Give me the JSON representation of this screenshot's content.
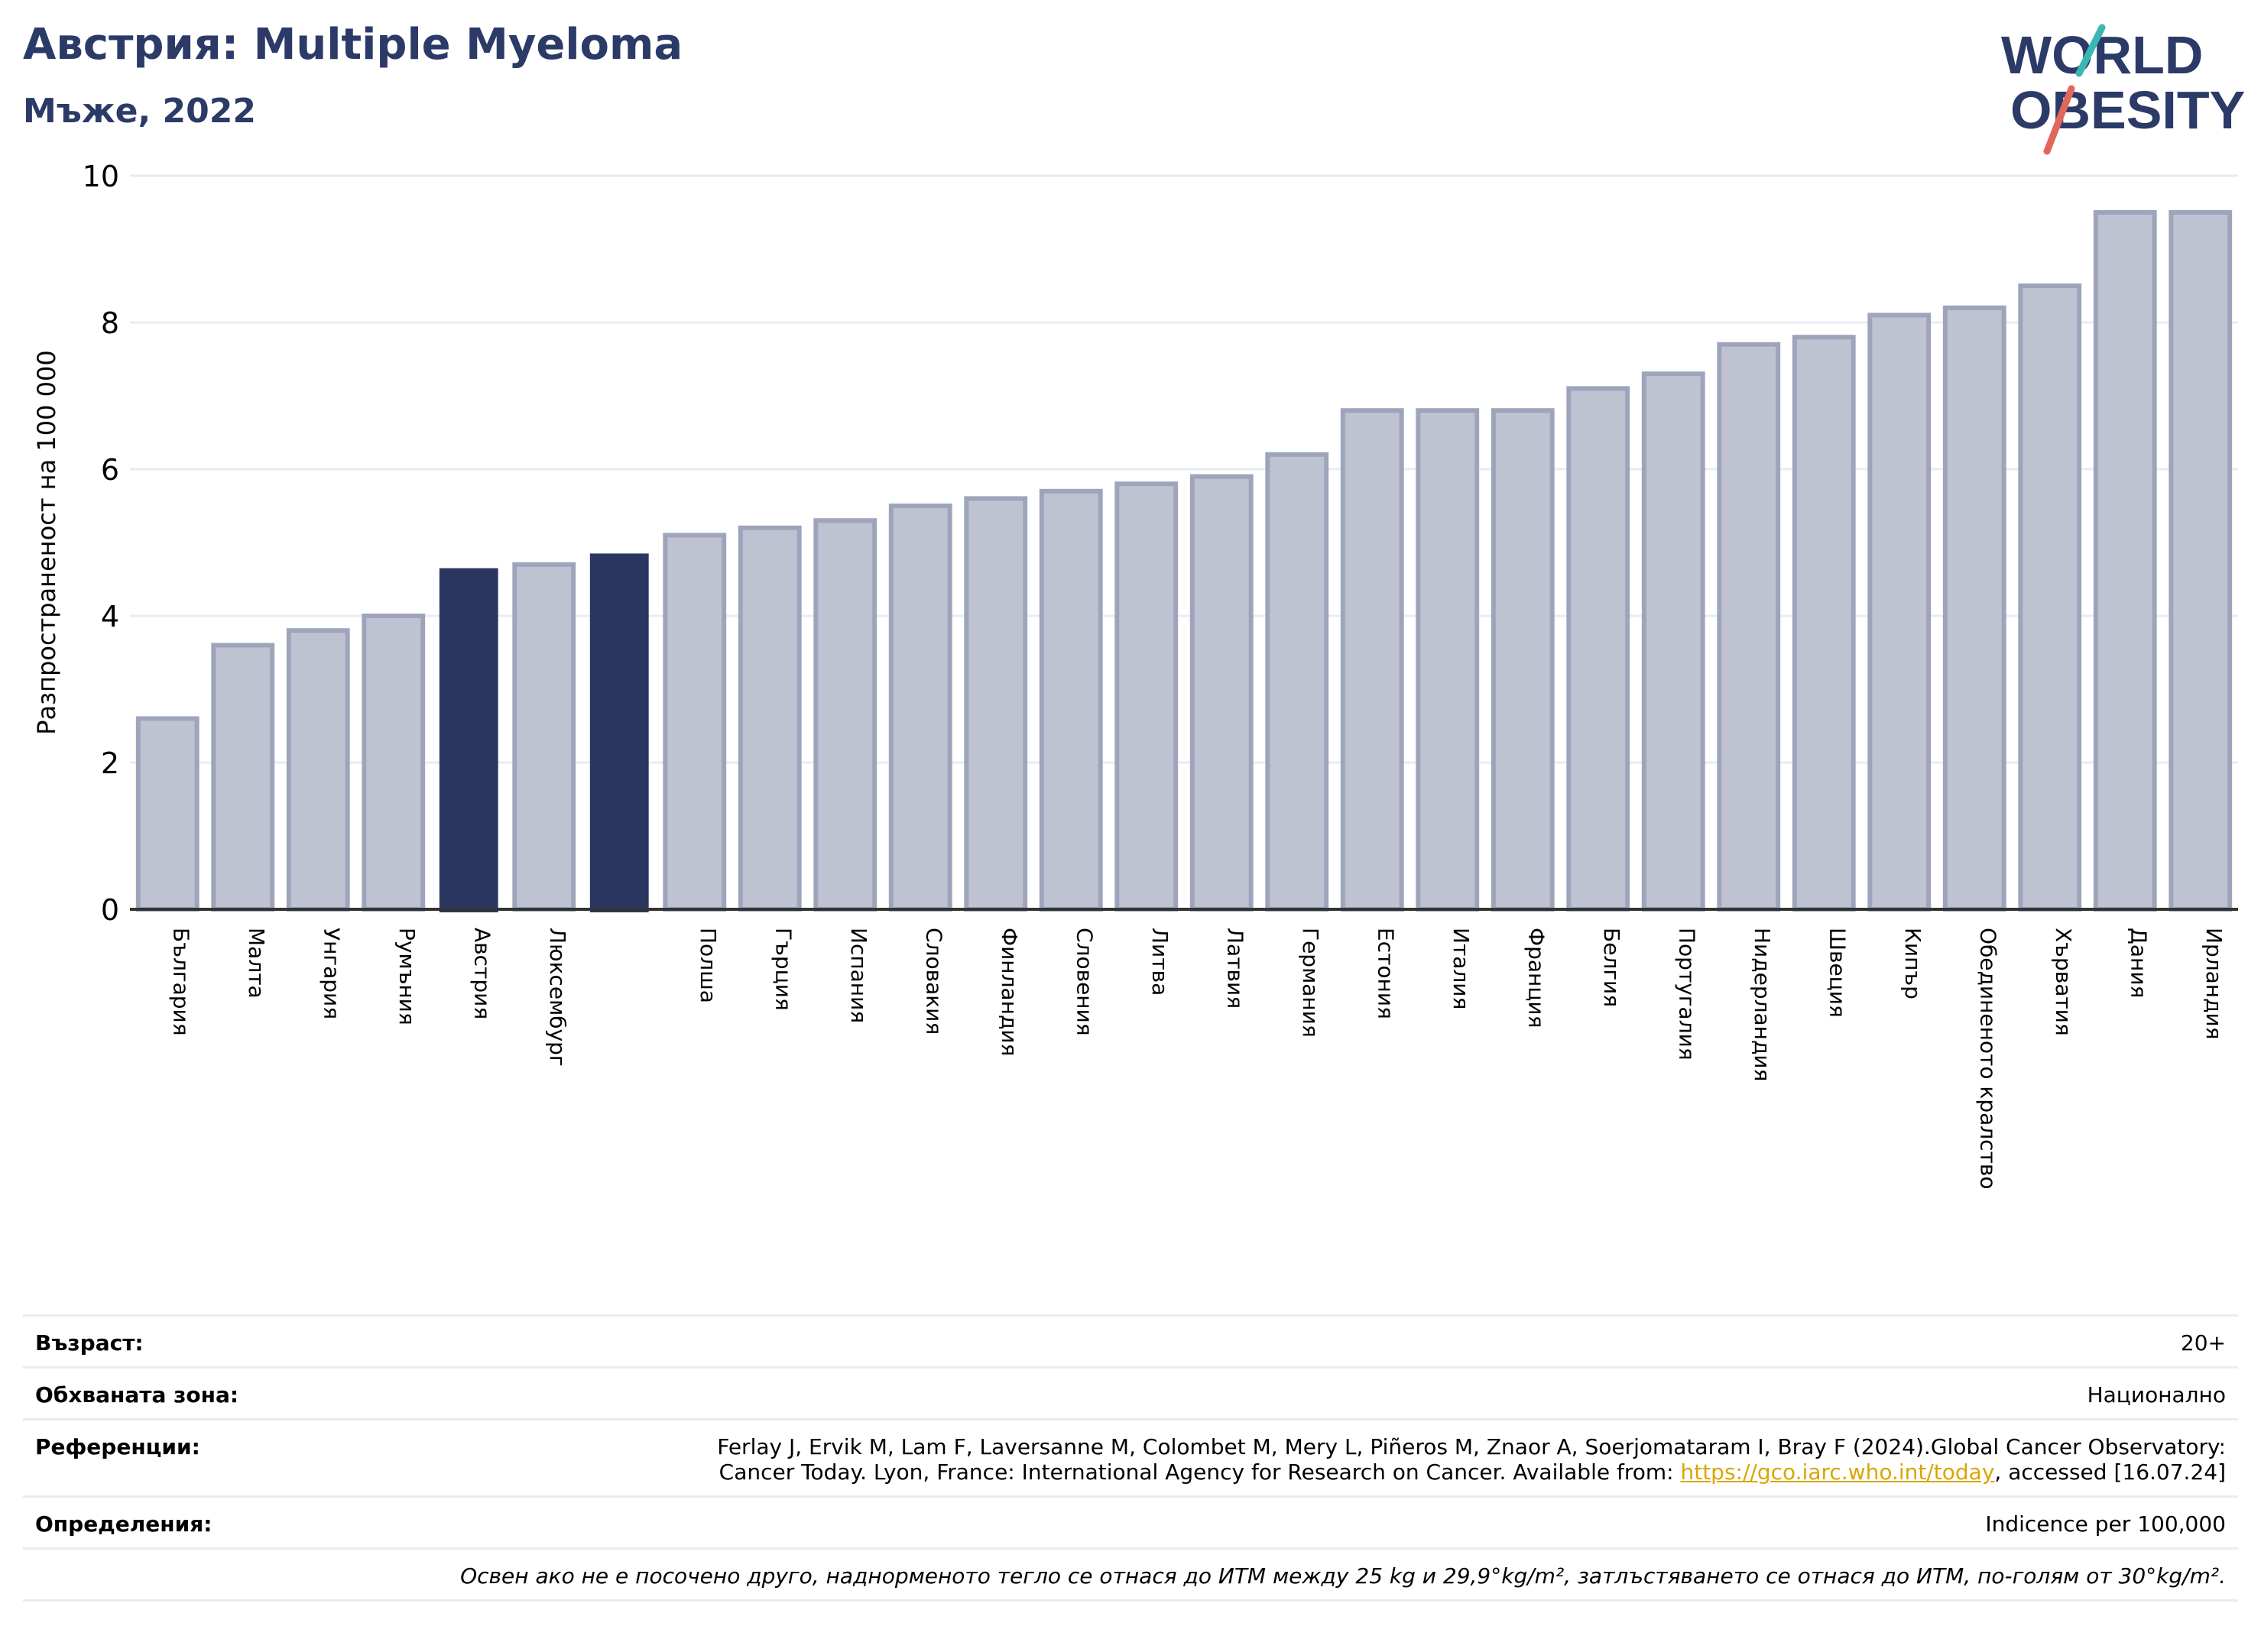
{
  "header": {
    "title": "Австрия: Multiple Myeloma",
    "subtitle": "Мъже, 2022"
  },
  "logo": {
    "line1": "WORLD",
    "line2": "OBESITY",
    "colors": {
      "text": "#2b3a67",
      "teal": "#3bb7b3",
      "coral": "#e0685b"
    }
  },
  "colors": {
    "bar": "#bfc3d1",
    "bar_border": "#9ea4bb",
    "highlight": "#2b3660",
    "axis": "#333333",
    "grid": "#e8ecef"
  },
  "chart_data": {
    "type": "bar",
    "ylabel": "Разпространеност  на 100 000",
    "ylim": [
      0,
      10
    ],
    "yticks": [
      0,
      2,
      4,
      6,
      8,
      10
    ],
    "grid": true,
    "categories": [
      "България",
      "Малта",
      "Унгария",
      "Румъния",
      "Австрия",
      "Люксембург",
      "",
      "Полша",
      "Гърция",
      "Испания",
      "Словакия",
      "Финландия",
      "Словения",
      "Литва",
      "Латвия",
      "Германия",
      "Естония",
      "Италия",
      "Франция",
      "Белгия",
      "Португалия",
      "Нидерландия",
      "Швеция",
      "Кипър",
      "Обединеното кралство",
      "Хърватия",
      "Дания",
      "Ирландия"
    ],
    "values": [
      2.6,
      3.6,
      3.8,
      4.0,
      4.65,
      4.7,
      4.85,
      5.1,
      5.2,
      5.3,
      5.5,
      5.6,
      5.7,
      5.8,
      5.9,
      6.2,
      6.8,
      6.8,
      6.8,
      7.1,
      7.3,
      7.7,
      7.8,
      8.1,
      8.2,
      8.5,
      9.5,
      9.5
    ],
    "highlighted": [
      4,
      6
    ]
  },
  "info": {
    "age_label": "Възраст:",
    "age_value": "20+",
    "area_label": "Обхваната зона:",
    "area_value": "Национално",
    "ref_label": "Референции:",
    "ref_line1": "Ferlay J, Ervik M, Lam F, Laversanne M, Colombet M, Mery L, Piñeros M, Znaor A, Soerjomataram I, Bray F (2024).Global Cancer Observatory:",
    "ref_line2_pre": "Cancer Today. Lyon, France: International Agency for Research on Cancer. Available from: ",
    "ref_link": "https://gco.iarc.who.int/today",
    "ref_line2_post": ", accessed [16.07.24]",
    "def_label": "Определения:",
    "def_value": "Indicence per 100,000",
    "note": "Освен ако не е посочено друго, наднорменото тегло се отнася до ИТМ между 25 kg и 29,9°kg/m², затлъстяването се отнася до ИТМ, по-голям от 30°kg/m²."
  }
}
